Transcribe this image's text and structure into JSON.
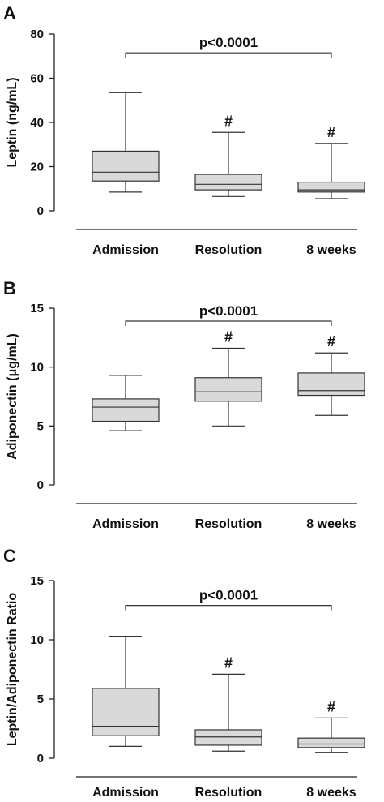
{
  "chart_data": [
    {
      "panel": "A",
      "type": "boxplot",
      "ylabel": "Leptin (ng/mL)",
      "ylim": [
        0,
        80
      ],
      "yticks": [
        0,
        20,
        40,
        60,
        80
      ],
      "categories": [
        "Admission",
        "Resolution",
        "8 weeks"
      ],
      "boxes": [
        {
          "min": 8.5,
          "q1": 13.5,
          "median": 17.5,
          "q3": 27,
          "max": 53.5
        },
        {
          "min": 6.5,
          "q1": 9.5,
          "median": 12,
          "q3": 16.5,
          "max": 35.5
        },
        {
          "min": 5.5,
          "q1": 8.5,
          "median": 9.5,
          "q3": 13,
          "max": 30.5
        }
      ],
      "markers": [
        "",
        "#",
        "#"
      ],
      "significance": {
        "label": "p<0.0001",
        "from": 0,
        "to": 2,
        "y": 71.5
      }
    },
    {
      "panel": "B",
      "type": "boxplot",
      "ylabel": "Adiponectin (μg/mL)",
      "ylim": [
        0,
        15
      ],
      "yticks": [
        0,
        5,
        10,
        15
      ],
      "categories": [
        "Admission",
        "Resolution",
        "8 weeks"
      ],
      "boxes": [
        {
          "min": 4.6,
          "q1": 5.4,
          "median": 6.6,
          "q3": 7.3,
          "max": 9.3
        },
        {
          "min": 5.0,
          "q1": 7.1,
          "median": 7.9,
          "q3": 9.1,
          "max": 11.6
        },
        {
          "min": 5.9,
          "q1": 7.6,
          "median": 8.0,
          "q3": 9.5,
          "max": 11.2
        }
      ],
      "markers": [
        "",
        "#",
        "#"
      ],
      "significance": {
        "label": "p<0.0001",
        "from": 0,
        "to": 2,
        "y": 13.9
      }
    },
    {
      "panel": "C",
      "type": "boxplot",
      "ylabel": "Leptin/Adiponectin Ratio",
      "ylim": [
        0,
        15
      ],
      "yticks": [
        0,
        5,
        10,
        15
      ],
      "categories": [
        "Admission",
        "Resolution",
        "8 weeks"
      ],
      "boxes": [
        {
          "min": 1.0,
          "q1": 1.9,
          "median": 2.7,
          "q3": 5.9,
          "max": 10.3
        },
        {
          "min": 0.6,
          "q1": 1.1,
          "median": 1.8,
          "q3": 2.4,
          "max": 7.1
        },
        {
          "min": 0.5,
          "q1": 0.9,
          "median": 1.2,
          "q3": 1.7,
          "max": 3.4
        }
      ],
      "markers": [
        "",
        "#",
        "#"
      ],
      "significance": {
        "label": "p<0.0001",
        "from": 0,
        "to": 2,
        "y": 12.9
      }
    }
  ]
}
